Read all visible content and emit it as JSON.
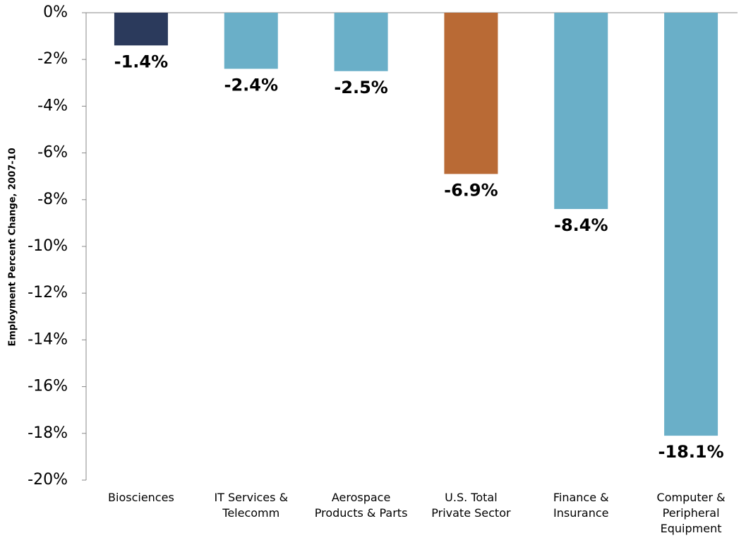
{
  "chart_data": {
    "type": "bar",
    "y_axis_label": "Employment Percent Change, 2007-10",
    "categories": [
      "Biosciences",
      "IT Services &\nTelecomm",
      "Aerospace\nProducts & Parts",
      "U.S. Total\nPrivate Sector",
      "Finance &\nInsurance",
      "Computer &\nPeripheral\nEquipment"
    ],
    "values": [
      -1.4,
      -2.4,
      -2.5,
      -6.9,
      -8.4,
      -18.1
    ],
    "value_labels": [
      "-1.4%",
      "-2.4%",
      "-2.5%",
      "-6.9%",
      "-8.4%",
      "-18.1%"
    ],
    "colors": [
      "#2b3a5c",
      "#6aafc8",
      "#6aafc8",
      "#b96a35",
      "#6aafc8",
      "#6aafc8"
    ],
    "ylim": [
      -20,
      0
    ],
    "yticks": [
      {
        "value": 0,
        "label": "0%"
      },
      {
        "value": -2,
        "label": "-2%"
      },
      {
        "value": -4,
        "label": "-4%"
      },
      {
        "value": -6,
        "label": "-6%"
      },
      {
        "value": -8,
        "label": "-8%"
      },
      {
        "value": -10,
        "label": "-10%"
      },
      {
        "value": -12,
        "label": "-12%"
      },
      {
        "value": -14,
        "label": "-14%"
      },
      {
        "value": -16,
        "label": "-16%"
      },
      {
        "value": -18,
        "label": "-18%"
      },
      {
        "value": -20,
        "label": "-20%"
      }
    ],
    "grid": false
  }
}
